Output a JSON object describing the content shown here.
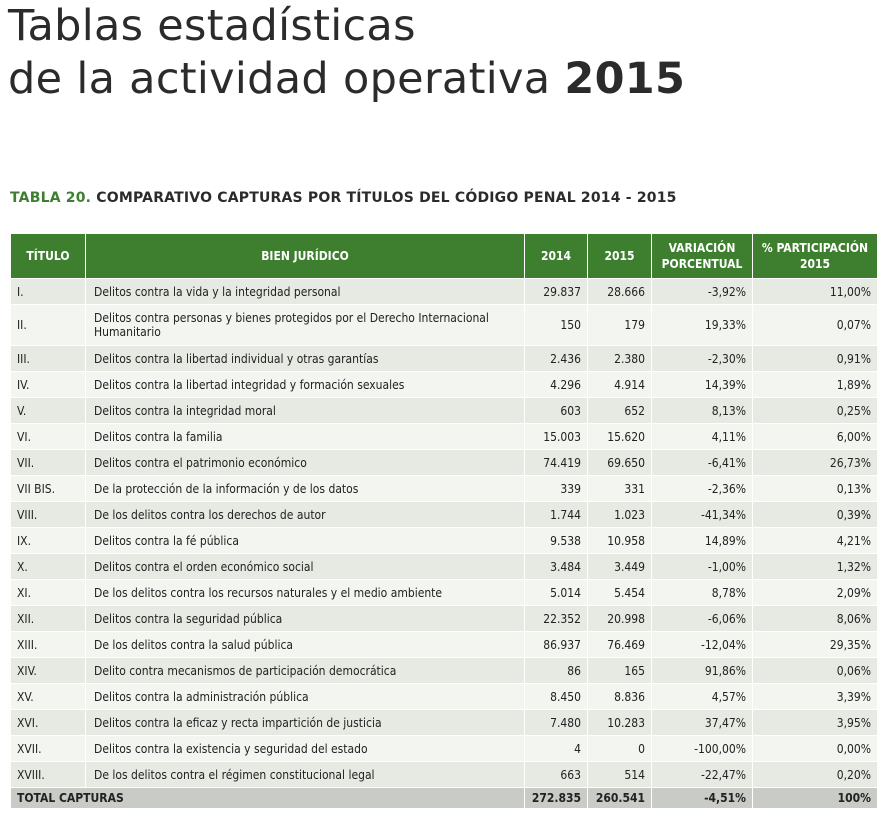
{
  "page": {
    "title_line1": "Tablas estadísticas",
    "title_line2": "de la actividad operativa",
    "title_year": "2015"
  },
  "caption": {
    "label": "TABLA 20.",
    "text": "COMPARATIVO CAPTURAS POR TÍTULOS DEL CÓDIGO PENAL 2014 - 2015"
  },
  "table": {
    "headers": {
      "titulo": "TÍTULO",
      "bien": "BIEN JURÍDICO",
      "y2014": "2014",
      "y2015": "2015",
      "variacion": "VARIACIÓN PORCENTUAL",
      "participacion": "% PARTICIPACIÓN 2015"
    },
    "rows": [
      {
        "titulo": "I.",
        "bien": "Delitos contra la vida y la integridad personal",
        "y2014": "29.837",
        "y2015": "28.666",
        "variacion": "-3,92%",
        "participacion": "11,00%"
      },
      {
        "titulo": "II.",
        "bien": "Delitos contra personas y bienes protegidos por el Derecho Internacional Humanitario",
        "y2014": "150",
        "y2015": "179",
        "variacion": "19,33%",
        "participacion": "0,07%"
      },
      {
        "titulo": "III.",
        "bien": "Delitos contra la libertad individual y otras garantías",
        "y2014": "2.436",
        "y2015": "2.380",
        "variacion": "-2,30%",
        "participacion": "0,91%"
      },
      {
        "titulo": "IV.",
        "bien": "Delitos contra la libertad integridad y formación sexuales",
        "y2014": "4.296",
        "y2015": "4.914",
        "variacion": "14,39%",
        "participacion": "1,89%"
      },
      {
        "titulo": "V.",
        "bien": "Delitos contra la integridad moral",
        "y2014": "603",
        "y2015": "652",
        "variacion": "8,13%",
        "participacion": "0,25%"
      },
      {
        "titulo": "VI.",
        "bien": "Delitos contra la familia",
        "y2014": "15.003",
        "y2015": "15.620",
        "variacion": "4,11%",
        "participacion": "6,00%"
      },
      {
        "titulo": "VII.",
        "bien": "Delitos contra el patrimonio económico",
        "y2014": "74.419",
        "y2015": "69.650",
        "variacion": "-6,41%",
        "participacion": "26,73%"
      },
      {
        "titulo": "VII BIS.",
        "bien": "De la protección de la información y de los datos",
        "y2014": "339",
        "y2015": "331",
        "variacion": "-2,36%",
        "participacion": "0,13%"
      },
      {
        "titulo": "VIII.",
        "bien": "De los delitos contra los derechos de autor",
        "y2014": "1.744",
        "y2015": "1.023",
        "variacion": "-41,34%",
        "participacion": "0,39%"
      },
      {
        "titulo": "IX.",
        "bien": "Delitos contra la fé pública",
        "y2014": "9.538",
        "y2015": "10.958",
        "variacion": "14,89%",
        "participacion": "4,21%"
      },
      {
        "titulo": "X.",
        "bien": "Delitos contra el orden económico social",
        "y2014": "3.484",
        "y2015": "3.449",
        "variacion": "-1,00%",
        "participacion": "1,32%"
      },
      {
        "titulo": "XI.",
        "bien": "De los delitos contra los recursos naturales y el medio ambiente",
        "y2014": "5.014",
        "y2015": "5.454",
        "variacion": "8,78%",
        "participacion": "2,09%"
      },
      {
        "titulo": "XII.",
        "bien": "Delitos contra la seguridad pública",
        "y2014": "22.352",
        "y2015": "20.998",
        "variacion": "-6,06%",
        "participacion": "8,06%"
      },
      {
        "titulo": "XIII.",
        "bien": "De los delitos contra la salud pública",
        "y2014": "86.937",
        "y2015": "76.469",
        "variacion": "-12,04%",
        "participacion": "29,35%"
      },
      {
        "titulo": "XIV.",
        "bien": "Delito contra mecanismos de participación democrática",
        "y2014": "86",
        "y2015": "165",
        "variacion": "91,86%",
        "participacion": "0,06%"
      },
      {
        "titulo": "XV.",
        "bien": "Delitos contra la administración pública",
        "y2014": "8.450",
        "y2015": "8.836",
        "variacion": "4,57%",
        "participacion": "3,39%"
      },
      {
        "titulo": "XVI.",
        "bien": "Delitos contra la eficaz y recta impartición de justicia",
        "y2014": "7.480",
        "y2015": "10.283",
        "variacion": "37,47%",
        "participacion": "3,95%"
      },
      {
        "titulo": "XVII.",
        "bien": "Delitos contra la existencia y seguridad del estado",
        "y2014": "4",
        "y2015": "0",
        "variacion": "-100,00%",
        "participacion": "0,00%"
      },
      {
        "titulo": "XVIII.",
        "bien": "De los delitos contra el régimen constitucional legal",
        "y2014": "663",
        "y2015": "514",
        "variacion": "-22,47%",
        "participacion": "0,20%"
      }
    ],
    "total": {
      "label": "TOTAL CAPTURAS",
      "y2014": "272.835",
      "y2015": "260.541",
      "variacion": "-4,51%",
      "participacion": "100%"
    }
  },
  "colors": {
    "header_green": "#3e7f2f",
    "row_light": "#f3f5f1",
    "row_dark": "#e6eae3",
    "total_gray": "#c8cbc6"
  }
}
